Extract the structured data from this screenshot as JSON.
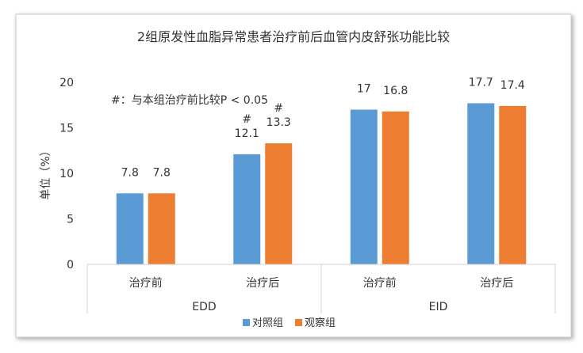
{
  "chart_data": {
    "type": "bar",
    "title": "2组原发性血脂异常患者治疗前后血管内皮舒张功能比较",
    "ylabel": "单位（%）",
    "xlabel": "",
    "ylim": [
      0,
      20
    ],
    "yticks": [
      0,
      5,
      10,
      15,
      20
    ],
    "grid": false,
    "legend_position": "bottom",
    "annotation": "#：与本组治疗前比较P < 0.05",
    "groups": [
      {
        "name": "EDD",
        "categories": [
          "治疗前",
          "治疗后"
        ]
      },
      {
        "name": "EID",
        "categories": [
          "治疗前",
          "治疗后"
        ]
      }
    ],
    "categories": [
      "治疗前",
      "治疗后",
      "治疗前",
      "治疗后"
    ],
    "series": [
      {
        "name": "对照组",
        "color": "#5B9BD5",
        "values": [
          7.8,
          12.1,
          17,
          17.7
        ],
        "labels": [
          "7.8",
          "12.1",
          "17",
          "17.7"
        ],
        "marks": [
          "",
          "#",
          "",
          ""
        ]
      },
      {
        "name": "观察组",
        "color": "#ED7D31",
        "values": [
          7.8,
          13.3,
          16.8,
          17.4
        ],
        "labels": [
          "7.8",
          "13.3",
          "16.8",
          "17.4"
        ],
        "marks": [
          "",
          "#",
          "",
          ""
        ]
      }
    ]
  }
}
